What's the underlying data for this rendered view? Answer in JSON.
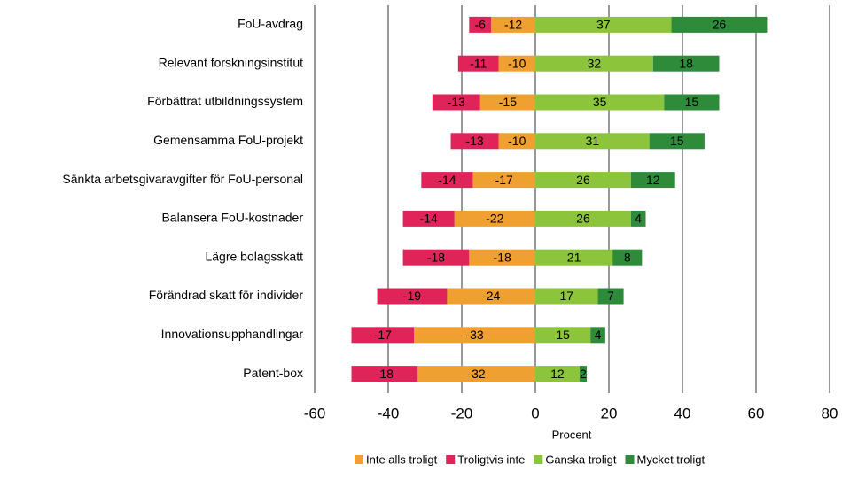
{
  "chart_data": {
    "type": "diverging_bar",
    "orientation": "horizontal",
    "stacked": true,
    "categories": [
      "FoU-avdrag",
      "Relevant forskningsinstitut",
      "Förbättrat utbildningssystem",
      "Gemensamma FoU-projekt",
      "Sänkta arbetsgivaravgifter för FoU-personal",
      "Balansera FoU-kostnader",
      "Lägre bolagsskatt",
      "Förändrad skatt för individer",
      "Innovationsupphandlingar",
      "Patent-box"
    ],
    "series": [
      {
        "name": "Inte alls troligt",
        "color": "#f0a030",
        "values": [
          -12,
          -10,
          -15,
          -10,
          -17,
          -22,
          -18,
          -24,
          -33,
          -32
        ]
      },
      {
        "name": "Troligtvis inte",
        "color": "#e0245a",
        "values": [
          -6,
          -11,
          -13,
          -13,
          -14,
          -14,
          -18,
          -19,
          -17,
          -18
        ]
      },
      {
        "name": "Ganska troligt",
        "color": "#8cc43c",
        "values": [
          37,
          32,
          35,
          31,
          26,
          26,
          21,
          17,
          15,
          12
        ]
      },
      {
        "name": "Mycket troligt",
        "color": "#2e8b3a",
        "values": [
          26,
          18,
          15,
          15,
          12,
          4,
          8,
          7,
          4,
          2
        ]
      }
    ],
    "x_label": "Procent",
    "xlim": [
      -60,
      80
    ],
    "xticks": [
      -60,
      -40,
      -20,
      0,
      20,
      40,
      60,
      80
    ],
    "grid": true,
    "legend": "bottom"
  }
}
